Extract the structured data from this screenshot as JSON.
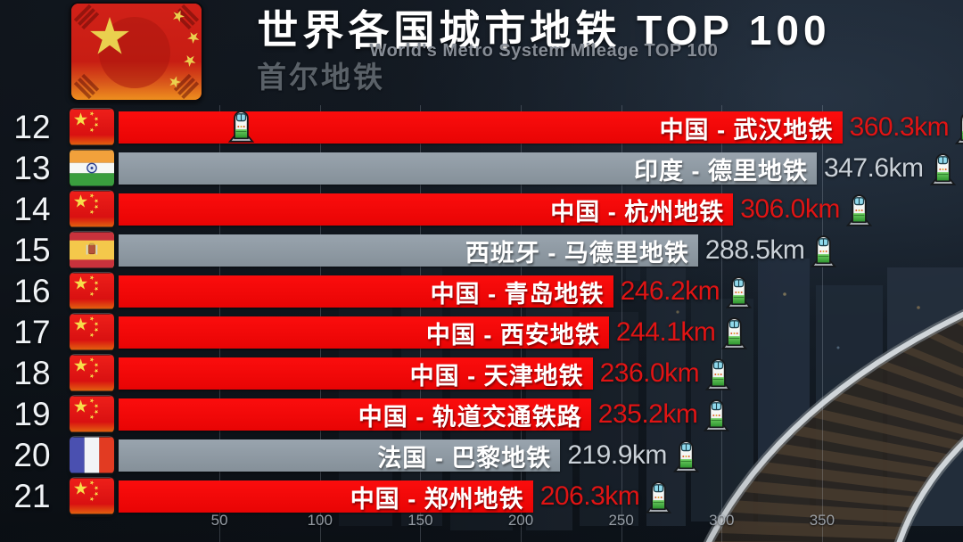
{
  "header": {
    "title": "世界各国城市地铁 TOP 100",
    "subtitle": "World's Metro System Mileage TOP 100",
    "transition_label": "首尔地铁",
    "badge_flags": [
      "south-korea",
      "china"
    ]
  },
  "chart_data": {
    "type": "bar",
    "orientation": "horizontal",
    "title": "世界各国城市地铁 TOP 100",
    "subtitle": "World's Metro System Mileage TOP 100",
    "unit": "km",
    "xlim": [
      0,
      420
    ],
    "x_ticks": [
      50,
      100,
      150,
      200,
      250,
      300,
      350
    ],
    "grid": true,
    "rows": [
      {
        "rank": "12",
        "flag": "cn",
        "country": "中国",
        "system": "武汉地铁",
        "label": "中国 - 武汉地铁",
        "value": 360.3,
        "value_label": "360.3km",
        "highlight": true,
        "marker_train": true
      },
      {
        "rank": "13",
        "flag": "in",
        "country": "印度",
        "system": "德里地铁",
        "label": "印度 - 德里地铁",
        "value": 347.6,
        "value_label": "347.6km",
        "highlight": false,
        "marker_train": false
      },
      {
        "rank": "14",
        "flag": "cn",
        "country": "中国",
        "system": "杭州地铁",
        "label": "中国 - 杭州地铁",
        "value": 306.0,
        "value_label": "306.0km",
        "highlight": true,
        "marker_train": false
      },
      {
        "rank": "15",
        "flag": "es",
        "country": "西班牙",
        "system": "马德里地铁",
        "label": "西班牙 - 马德里地铁",
        "value": 288.5,
        "value_label": "288.5km",
        "highlight": false,
        "marker_train": false
      },
      {
        "rank": "16",
        "flag": "cn",
        "country": "中国",
        "system": "青岛地铁",
        "label": "中国 - 青岛地铁",
        "value": 246.2,
        "value_label": "246.2km",
        "highlight": true,
        "marker_train": false
      },
      {
        "rank": "17",
        "flag": "cn",
        "country": "中国",
        "system": "西安地铁",
        "label": "中国 - 西安地铁",
        "value": 244.1,
        "value_label": "244.1km",
        "highlight": true,
        "marker_train": false
      },
      {
        "rank": "18",
        "flag": "cn",
        "country": "中国",
        "system": "天津地铁",
        "label": "中国 - 天津地铁",
        "value": 236.0,
        "value_label": "236.0km",
        "highlight": true,
        "marker_train": false
      },
      {
        "rank": "19",
        "flag": "cn",
        "country": "中国",
        "system": "轨道交通铁路",
        "label": "中国 - 轨道交通铁路",
        "value": 235.2,
        "value_label": "235.2km",
        "highlight": true,
        "marker_train": false
      },
      {
        "rank": "20",
        "flag": "fr",
        "country": "法国",
        "system": "巴黎地铁",
        "label": "法国 - 巴黎地铁",
        "value": 219.9,
        "value_label": "219.9km",
        "highlight": false,
        "marker_train": false
      },
      {
        "rank": "21",
        "flag": "cn",
        "country": "中国",
        "system": "郑州地铁",
        "label": "中国 - 郑州地铁",
        "value": 206.3,
        "value_label": "206.3km",
        "highlight": true,
        "marker_train": false
      }
    ]
  },
  "colors": {
    "bar_highlight": "#f50707",
    "bar_normal": "#8e99a4",
    "value_highlight": "#e01414",
    "value_normal": "#cad1d8",
    "bar_text": "#ffffff",
    "background": "#131b24"
  },
  "icons": {
    "train": "train-icon",
    "flag_names": {
      "cn": "China",
      "in": "India",
      "es": "Spain",
      "fr": "France"
    }
  }
}
